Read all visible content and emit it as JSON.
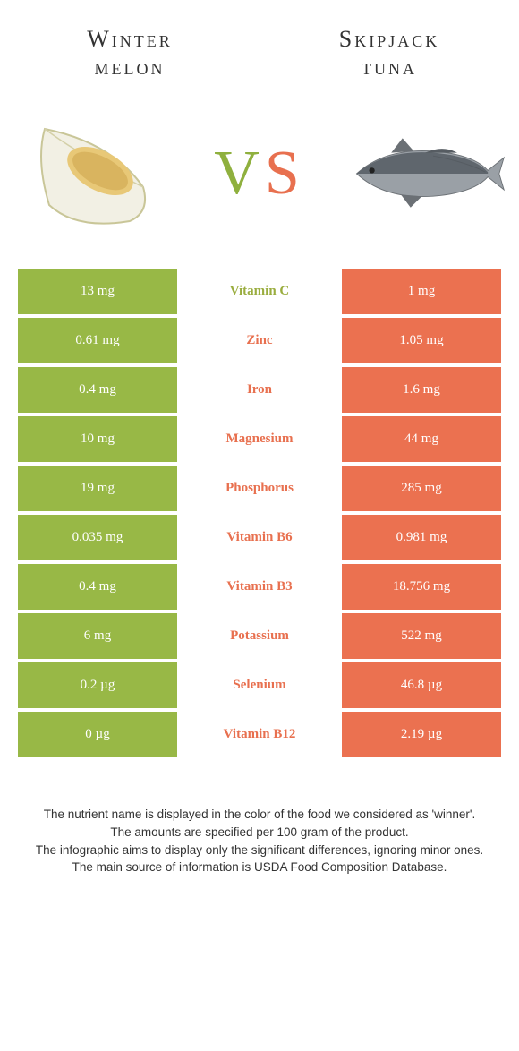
{
  "colors": {
    "left": "#98b846",
    "right": "#eb7150",
    "left_text": "#9aad3f",
    "right_text": "#e8704f"
  },
  "titles": {
    "left_line1": "Winter",
    "left_line2": "melon",
    "right_line1": "Skipjack",
    "right_line2": "tuna"
  },
  "vs": {
    "v": "V",
    "s": "S"
  },
  "rows": [
    {
      "left": "13 mg",
      "label": "Vitamin C",
      "right": "1 mg",
      "winner": "left"
    },
    {
      "left": "0.61 mg",
      "label": "Zinc",
      "right": "1.05 mg",
      "winner": "right"
    },
    {
      "left": "0.4 mg",
      "label": "Iron",
      "right": "1.6 mg",
      "winner": "right"
    },
    {
      "left": "10 mg",
      "label": "Magnesium",
      "right": "44 mg",
      "winner": "right"
    },
    {
      "left": "19 mg",
      "label": "Phosphorus",
      "right": "285 mg",
      "winner": "right"
    },
    {
      "left": "0.035 mg",
      "label": "Vitamin B6",
      "right": "0.981 mg",
      "winner": "right"
    },
    {
      "left": "0.4 mg",
      "label": "Vitamin B3",
      "right": "18.756 mg",
      "winner": "right"
    },
    {
      "left": "6 mg",
      "label": "Potassium",
      "right": "522 mg",
      "winner": "right"
    },
    {
      "left": "0.2 µg",
      "label": "Selenium",
      "right": "46.8 µg",
      "winner": "right"
    },
    {
      "left": "0 µg",
      "label": "Vitamin B12",
      "right": "2.19 µg",
      "winner": "right"
    }
  ],
  "footer": {
    "l1": "The nutrient name is displayed in the color of the food we considered as 'winner'.",
    "l2": "The amounts are specified per 100 gram of the product.",
    "l3": "The infographic aims to display only the significant differences, ignoring minor ones.",
    "l4": "The main source of information is USDA Food Composition Database."
  }
}
